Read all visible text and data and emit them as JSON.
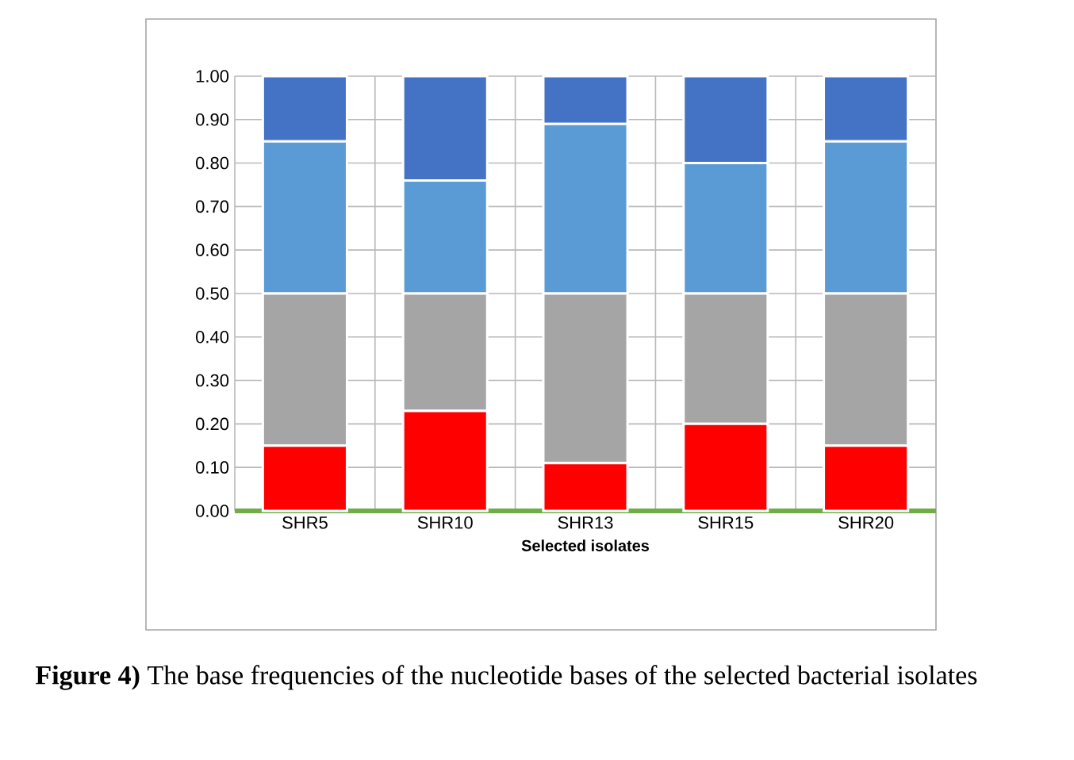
{
  "chart_data": {
    "type": "bar",
    "stacked": true,
    "xlabel": "Selected isolates",
    "categories": [
      "SHR5",
      "SHR10",
      "SHR13",
      "SHR15",
      "SHR20"
    ],
    "series": [
      {
        "color": "#ff0000",
        "values": [
          0.15,
          0.23,
          0.11,
          0.2,
          0.15
        ]
      },
      {
        "color": "#a5a5a5",
        "values": [
          0.35,
          0.27,
          0.39,
          0.3,
          0.35
        ]
      },
      {
        "color": "#5b9bd5",
        "values": [
          0.35,
          0.26,
          0.39,
          0.3,
          0.35
        ]
      },
      {
        "color": "#4472c4",
        "values": [
          0.15,
          0.24,
          0.11,
          0.2,
          0.15
        ]
      }
    ],
    "ylim": [
      0,
      1
    ],
    "yticks": [
      {
        "value": 0,
        "label": "0.00"
      },
      {
        "value": 0.1,
        "label": "0.10"
      },
      {
        "value": 0.2,
        "label": "0.20"
      },
      {
        "value": 0.3,
        "label": "0.30"
      },
      {
        "value": 0.4,
        "label": "0.40"
      },
      {
        "value": 0.5,
        "label": "0.50"
      },
      {
        "value": 0.6,
        "label": "0.60"
      },
      {
        "value": 0.7,
        "label": "0.70"
      },
      {
        "value": 0.8,
        "label": "0.80"
      },
      {
        "value": 0.9,
        "label": "0.90"
      },
      {
        "value": 1,
        "label": "1.00"
      }
    ],
    "grid": true,
    "annotations": [
      "**Figure 4)** The base frequencies of the nucleotide bases of the selected bacterial isolates"
    ]
  }
}
